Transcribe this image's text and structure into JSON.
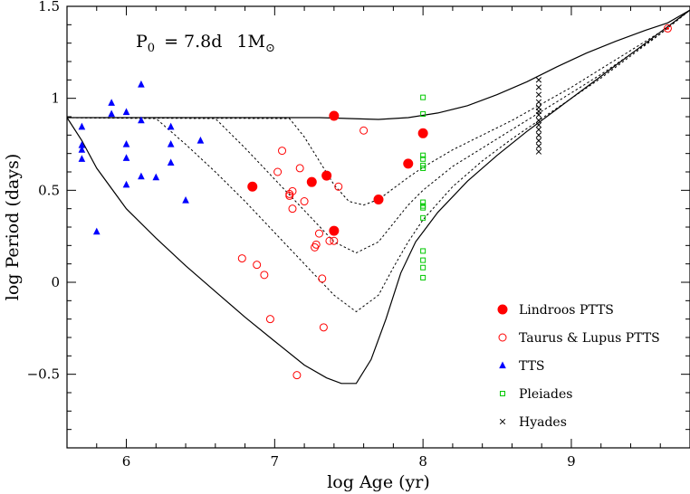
{
  "chart_data": {
    "type": "scatter",
    "xlabel": "log Age (yr)",
    "ylabel": "log Period (days)",
    "xlim": [
      5.6,
      9.8
    ],
    "ylim": [
      -0.9,
      1.5
    ],
    "x_ticks": [
      6,
      7,
      8,
      9
    ],
    "y_ticks": [
      -0.5,
      0,
      0.5,
      1,
      1.5
    ],
    "annotation": {
      "p0_label": "P",
      "p0_sub": "0",
      "p0_value": "= 7.8d",
      "mass_value": "1M",
      "mass_sub": "⊙"
    },
    "legend_placement": "bottom-right",
    "series": [
      {
        "name": "Lindroos PTTS",
        "marker": "filled-circle",
        "color": "#ff0000",
        "points": [
          [
            6.85,
            0.52
          ],
          [
            7.25,
            0.545
          ],
          [
            7.35,
            0.58
          ],
          [
            7.4,
            0.905
          ],
          [
            7.4,
            0.28
          ],
          [
            7.7,
            0.45
          ],
          [
            7.9,
            0.645
          ],
          [
            8.0,
            0.81
          ]
        ]
      },
      {
        "name": "Taurus & Lupus PTTS",
        "marker": "open-circle",
        "color": "#ff0000",
        "points": [
          [
            6.78,
            0.13
          ],
          [
            6.88,
            0.095
          ],
          [
            6.93,
            0.04
          ],
          [
            6.97,
            -0.2
          ],
          [
            7.02,
            0.6
          ],
          [
            7.05,
            0.715
          ],
          [
            7.1,
            0.47
          ],
          [
            7.1,
            0.48
          ],
          [
            7.12,
            0.495
          ],
          [
            7.12,
            0.4
          ],
          [
            7.17,
            0.62
          ],
          [
            7.2,
            0.44
          ],
          [
            7.27,
            0.19
          ],
          [
            7.28,
            0.205
          ],
          [
            7.3,
            0.265
          ],
          [
            7.32,
            0.02
          ],
          [
            7.33,
            -0.245
          ],
          [
            7.37,
            0.225
          ],
          [
            7.4,
            0.225
          ],
          [
            7.43,
            0.52
          ],
          [
            7.6,
            0.825
          ],
          [
            7.15,
            -0.505
          ],
          [
            9.65,
            1.38
          ]
        ]
      },
      {
        "name": "TTS",
        "marker": "filled-triangle",
        "color": "#0000ff",
        "points": [
          [
            5.7,
            0.845
          ],
          [
            5.7,
            0.745
          ],
          [
            5.7,
            0.72
          ],
          [
            5.7,
            0.67
          ],
          [
            5.8,
            0.275
          ],
          [
            5.9,
            0.975
          ],
          [
            5.9,
            0.915
          ],
          [
            6.0,
            0.925
          ],
          [
            6.0,
            0.75
          ],
          [
            6.0,
            0.675
          ],
          [
            6.0,
            0.53
          ],
          [
            6.1,
            1.075
          ],
          [
            6.1,
            0.88
          ],
          [
            6.1,
            0.575
          ],
          [
            6.2,
            0.57
          ],
          [
            6.3,
            0.845
          ],
          [
            6.3,
            0.75
          ],
          [
            6.3,
            0.65
          ],
          [
            6.4,
            0.445
          ],
          [
            6.5,
            0.77
          ]
        ]
      },
      {
        "name": "Pleiades",
        "marker": "open-square",
        "color": "#00c800",
        "points": [
          [
            8.0,
            1.005
          ],
          [
            8.0,
            0.915
          ],
          [
            8.0,
            0.69
          ],
          [
            8.0,
            0.67
          ],
          [
            8.0,
            0.635
          ],
          [
            8.0,
            0.62
          ],
          [
            8.0,
            0.435
          ],
          [
            8.0,
            0.415
          ],
          [
            8.0,
            0.405
          ],
          [
            8.0,
            0.35
          ],
          [
            8.0,
            0.17
          ],
          [
            8.0,
            0.12
          ],
          [
            8.0,
            0.08
          ],
          [
            8.0,
            0.025
          ]
        ]
      },
      {
        "name": "Hyades",
        "marker": "cross",
        "color": "#000000",
        "points": [
          [
            8.78,
            1.1
          ],
          [
            8.78,
            1.06
          ],
          [
            8.78,
            1.02
          ],
          [
            8.78,
            0.98
          ],
          [
            8.78,
            0.95
          ],
          [
            8.78,
            0.93
          ],
          [
            8.78,
            0.91
          ],
          [
            8.78,
            0.88
          ],
          [
            8.78,
            0.855
          ],
          [
            8.78,
            0.83
          ],
          [
            8.78,
            0.8
          ],
          [
            8.78,
            0.77
          ],
          [
            8.78,
            0.74
          ],
          [
            8.78,
            0.71
          ]
        ]
      }
    ],
    "model_curves": [
      {
        "style": "solid",
        "points": [
          [
            5.6,
            0.895
          ],
          [
            6.0,
            0.895
          ],
          [
            6.5,
            0.895
          ],
          [
            7.0,
            0.895
          ],
          [
            7.3,
            0.895
          ],
          [
            7.5,
            0.89
          ],
          [
            7.7,
            0.885
          ],
          [
            7.9,
            0.895
          ],
          [
            8.1,
            0.92
          ],
          [
            8.3,
            0.96
          ],
          [
            8.5,
            1.02
          ],
          [
            8.7,
            1.09
          ],
          [
            8.9,
            1.17
          ],
          [
            9.1,
            1.245
          ],
          [
            9.3,
            1.31
          ],
          [
            9.5,
            1.37
          ],
          [
            9.65,
            1.41
          ],
          [
            9.8,
            1.48
          ]
        ]
      },
      {
        "style": "dotted",
        "points": [
          [
            5.6,
            0.895
          ],
          [
            7.1,
            0.89
          ],
          [
            7.2,
            0.79
          ],
          [
            7.3,
            0.66
          ],
          [
            7.4,
            0.53
          ],
          [
            7.5,
            0.44
          ],
          [
            7.6,
            0.42
          ],
          [
            7.7,
            0.45
          ],
          [
            7.8,
            0.51
          ],
          [
            7.9,
            0.57
          ],
          [
            8.0,
            0.625
          ],
          [
            8.2,
            0.72
          ],
          [
            8.4,
            0.8
          ],
          [
            8.6,
            0.88
          ],
          [
            8.8,
            0.97
          ],
          [
            9.0,
            1.06
          ],
          [
            9.2,
            1.16
          ],
          [
            9.4,
            1.26
          ],
          [
            9.6,
            1.36
          ],
          [
            9.8,
            1.48
          ]
        ]
      },
      {
        "style": "dotted",
        "points": [
          [
            5.6,
            0.895
          ],
          [
            6.6,
            0.89
          ],
          [
            6.8,
            0.73
          ],
          [
            7.0,
            0.56
          ],
          [
            7.2,
            0.39
          ],
          [
            7.4,
            0.22
          ],
          [
            7.55,
            0.16
          ],
          [
            7.7,
            0.22
          ],
          [
            7.8,
            0.32
          ],
          [
            7.9,
            0.42
          ],
          [
            8.0,
            0.5
          ],
          [
            8.2,
            0.63
          ],
          [
            8.4,
            0.73
          ],
          [
            8.6,
            0.83
          ],
          [
            8.8,
            0.93
          ],
          [
            9.0,
            1.03
          ],
          [
            9.2,
            1.13
          ],
          [
            9.4,
            1.24
          ],
          [
            9.6,
            1.35
          ],
          [
            9.8,
            1.48
          ]
        ]
      },
      {
        "style": "dotted",
        "points": [
          [
            5.6,
            0.895
          ],
          [
            6.2,
            0.89
          ],
          [
            6.4,
            0.75
          ],
          [
            6.6,
            0.6
          ],
          [
            6.8,
            0.44
          ],
          [
            7.0,
            0.27
          ],
          [
            7.2,
            0.1
          ],
          [
            7.4,
            -0.07
          ],
          [
            7.55,
            -0.16
          ],
          [
            7.7,
            -0.07
          ],
          [
            7.8,
            0.08
          ],
          [
            7.9,
            0.22
          ],
          [
            8.0,
            0.34
          ],
          [
            8.2,
            0.52
          ],
          [
            8.4,
            0.66
          ],
          [
            8.6,
            0.78
          ],
          [
            8.8,
            0.89
          ],
          [
            9.0,
            1.0
          ],
          [
            9.2,
            1.11
          ],
          [
            9.4,
            1.23
          ],
          [
            9.6,
            1.35
          ],
          [
            9.8,
            1.48
          ]
        ]
      },
      {
        "style": "solid",
        "points": [
          [
            5.6,
            0.895
          ],
          [
            5.7,
            0.77
          ],
          [
            5.8,
            0.62
          ],
          [
            6.0,
            0.4
          ],
          [
            6.2,
            0.24
          ],
          [
            6.4,
            0.09
          ],
          [
            6.6,
            -0.05
          ],
          [
            6.8,
            -0.19
          ],
          [
            7.0,
            -0.32
          ],
          [
            7.2,
            -0.45
          ],
          [
            7.35,
            -0.52
          ],
          [
            7.45,
            -0.55
          ],
          [
            7.55,
            -0.55
          ],
          [
            7.65,
            -0.42
          ],
          [
            7.75,
            -0.2
          ],
          [
            7.85,
            0.05
          ],
          [
            7.95,
            0.22
          ],
          [
            8.1,
            0.38
          ],
          [
            8.3,
            0.55
          ],
          [
            8.5,
            0.69
          ],
          [
            8.7,
            0.82
          ],
          [
            8.9,
            0.94
          ],
          [
            9.1,
            1.06
          ],
          [
            9.3,
            1.18
          ],
          [
            9.5,
            1.3
          ],
          [
            9.7,
            1.42
          ],
          [
            9.8,
            1.48
          ]
        ]
      }
    ]
  }
}
